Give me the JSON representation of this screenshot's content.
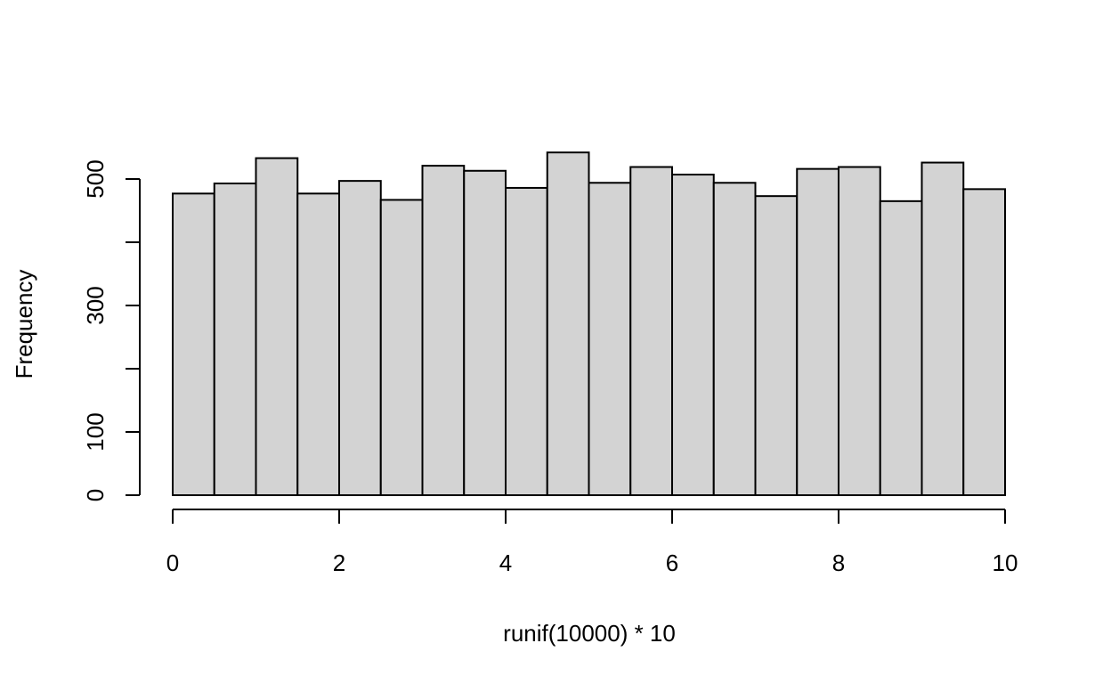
{
  "chart_data": {
    "type": "bar",
    "xlabel": "runif(10000) * 10",
    "ylabel": "Frequency",
    "bins": [
      {
        "start": 0.0,
        "end": 0.5,
        "count": 477
      },
      {
        "start": 0.5,
        "end": 1.0,
        "count": 493
      },
      {
        "start": 1.0,
        "end": 1.5,
        "count": 533
      },
      {
        "start": 1.5,
        "end": 2.0,
        "count": 477
      },
      {
        "start": 2.0,
        "end": 2.5,
        "count": 497
      },
      {
        "start": 2.5,
        "end": 3.0,
        "count": 467
      },
      {
        "start": 3.0,
        "end": 3.5,
        "count": 521
      },
      {
        "start": 3.5,
        "end": 4.0,
        "count": 513
      },
      {
        "start": 4.0,
        "end": 4.5,
        "count": 486
      },
      {
        "start": 4.5,
        "end": 5.0,
        "count": 542
      },
      {
        "start": 5.0,
        "end": 5.5,
        "count": 494
      },
      {
        "start": 5.5,
        "end": 6.0,
        "count": 519
      },
      {
        "start": 6.0,
        "end": 6.5,
        "count": 507
      },
      {
        "start": 6.5,
        "end": 7.0,
        "count": 494
      },
      {
        "start": 7.0,
        "end": 7.5,
        "count": 473
      },
      {
        "start": 7.5,
        "end": 8.0,
        "count": 516
      },
      {
        "start": 8.0,
        "end": 8.5,
        "count": 519
      },
      {
        "start": 8.5,
        "end": 9.0,
        "count": 465
      },
      {
        "start": 9.0,
        "end": 9.5,
        "count": 526
      },
      {
        "start": 9.5,
        "end": 10.0,
        "count": 484
      }
    ],
    "xlim": [
      0,
      10
    ],
    "ylim": [
      0,
      542
    ],
    "x_ticks": [
      0,
      2,
      4,
      6,
      8,
      10
    ],
    "y_ticks": [
      0,
      100,
      200,
      300,
      400,
      500
    ],
    "y_tick_labels": [
      "0",
      "100",
      "",
      "300",
      "",
      "500"
    ],
    "bar_fill": "#d3d3d3",
    "bar_stroke": "#000000",
    "grid": false
  }
}
